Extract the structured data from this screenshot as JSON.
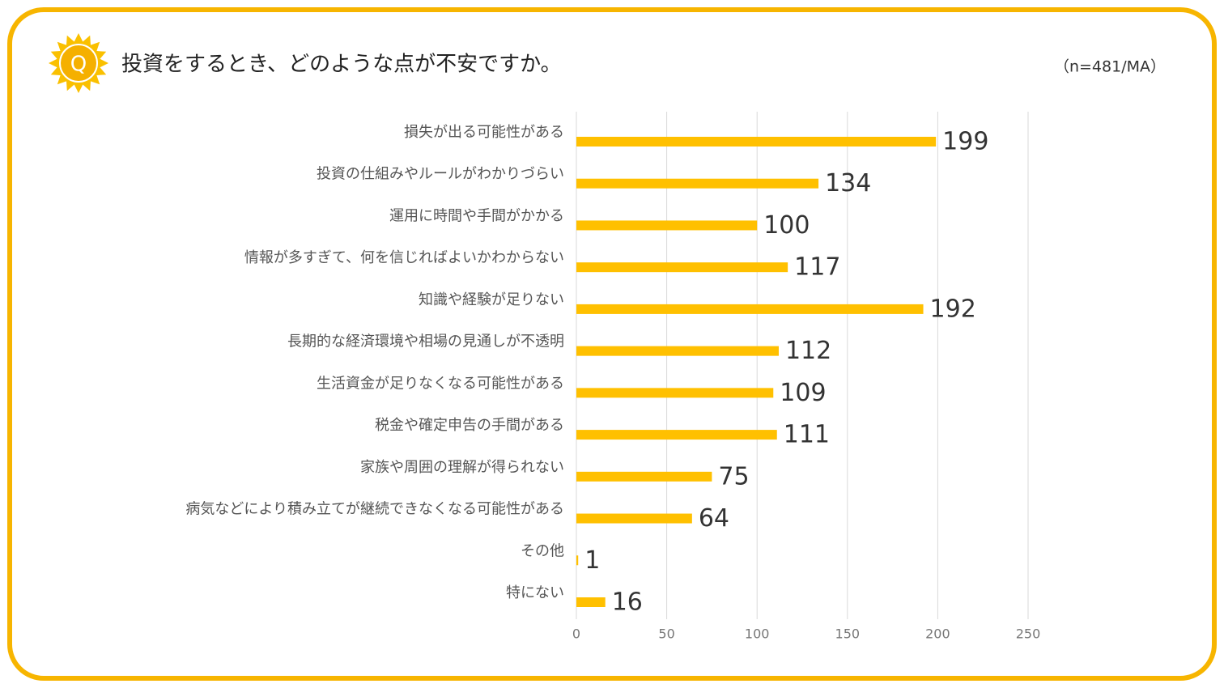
{
  "chart_data": {
    "type": "bar",
    "orientation": "horizontal",
    "icon_label": "Q",
    "title": "投資をするとき、どのような点が不安ですか。",
    "note": "（n=481/MA）",
    "categories": [
      "損失が出る可能性がある",
      "投資の仕組みやルールがわかりづらい",
      "運用に時間や手間がかかる",
      "情報が多すぎて、何を信じればよいかわからない",
      "知識や経験が足りない",
      "長期的な経済環境や相場の見通しが不透明",
      "生活資金が足りなくなる可能性がある",
      "税金や確定申告の手間がある",
      "家族や周囲の理解が得られない",
      "病気などにより積み立てが継続できなくなる可能性がある",
      "その他",
      "特にない"
    ],
    "values": [
      199,
      134,
      100,
      117,
      192,
      112,
      109,
      111,
      75,
      64,
      1,
      16
    ],
    "color": "#ffc000",
    "xlim": [
      0,
      250
    ],
    "xticks": [
      0,
      50,
      100,
      150,
      200,
      250
    ],
    "grid": true
  }
}
